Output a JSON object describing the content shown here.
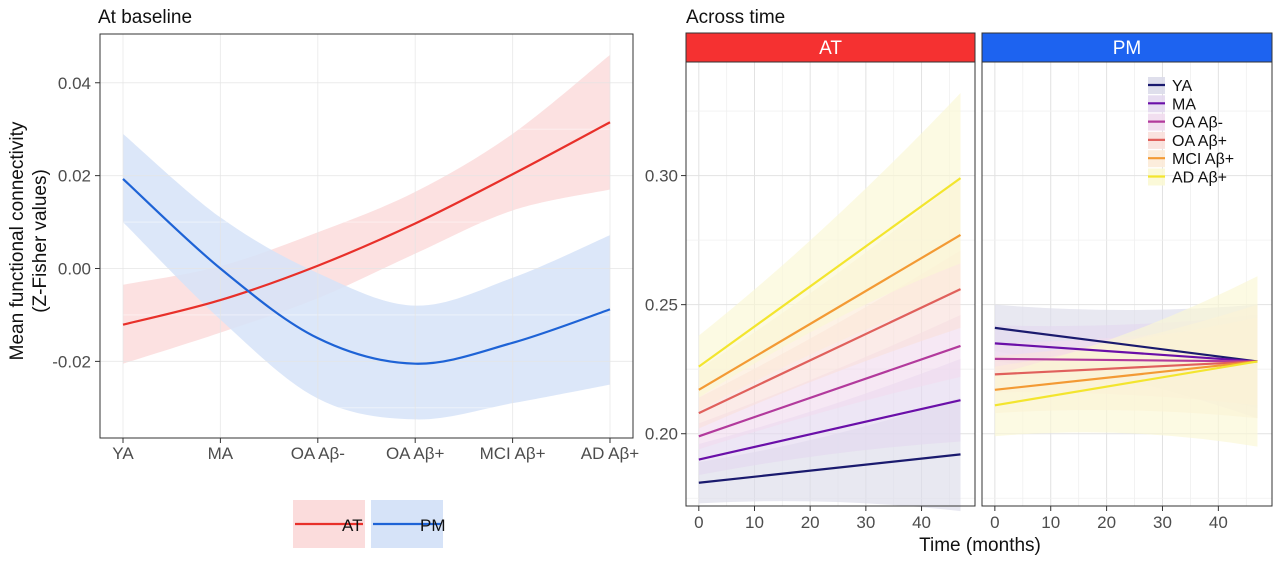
{
  "figure": {
    "left_title": "At baseline",
    "right_title": "Across time"
  },
  "chart_data": [
    {
      "type": "line",
      "title": "At baseline",
      "xlabel": "",
      "ylabel": "Mean functional connectivity",
      "ylabel2": "(Z-Fisher values)",
      "categories": [
        "YA",
        "MA",
        "OA Aβ-",
        "OA Aβ+",
        "MCI Aβ+",
        "AD Aβ+"
      ],
      "yticks": [
        "0.04",
        "0.02",
        "0.00",
        "-0.02"
      ],
      "ytick_values": [
        0.04,
        0.02,
        0.0,
        -0.02
      ],
      "ylim": [
        -0.0365,
        0.0505
      ],
      "grid": true,
      "legend_position": "bottom",
      "series": [
        {
          "name": "AT",
          "color": "#e8302a",
          "band": "#fbdcdc",
          "values": [
            -0.0121,
            -0.0068,
            0.0006,
            0.0097,
            0.0203,
            0.0315
          ],
          "lower": [
            -0.0205,
            -0.0138,
            -0.0064,
            0.0032,
            0.0125,
            0.017
          ],
          "upper": [
            -0.0035,
            0.0005,
            0.0078,
            0.0165,
            0.029,
            0.046
          ]
        },
        {
          "name": "PM",
          "color": "#1e63d6",
          "band": "#d6e3f8",
          "values": [
            0.0193,
            0.0,
            -0.015,
            -0.0205,
            -0.016,
            -0.0088
          ],
          "lower": [
            0.01,
            -0.011,
            -0.028,
            -0.0325,
            -0.029,
            -0.025
          ],
          "upper": [
            0.029,
            0.011,
            -0.001,
            -0.008,
            -0.002,
            0.0072
          ]
        }
      ]
    },
    {
      "type": "line",
      "title": "Across time",
      "xlabel": "Time (months)",
      "ylabel": "",
      "xticks": [
        "0",
        "10",
        "20",
        "30",
        "40"
      ],
      "xtick_values": [
        0,
        10,
        20,
        30,
        40
      ],
      "xlim": [
        -2.3,
        49.6
      ],
      "yticks": [
        "0.30",
        "0.25",
        "0.20"
      ],
      "ytick_values": [
        0.3,
        0.25,
        0.2
      ],
      "ylim": [
        0.172,
        0.344
      ],
      "grid": true,
      "legend_position": "top-right",
      "legend": [
        "YA",
        "MA",
        "OA Aβ-",
        "OA Aβ+",
        "MCI Aβ+",
        "AD Aβ+"
      ],
      "panels": [
        {
          "name": "AT",
          "strip_color": "#f53131",
          "series": [
            {
              "name": "YA",
              "color": "#1a1a6e",
              "band": "#dcdcea",
              "x": [
                0,
                47
              ],
              "values": [
                0.181,
                0.192
              ],
              "band_halfwidth": [
                0.008,
                0.022
              ]
            },
            {
              "name": "MA",
              "color": "#6a0fa8",
              "band": "#e4d9f0",
              "x": [
                0,
                47
              ],
              "values": [
                0.19,
                0.213
              ],
              "band_halfwidth": [
                0.006,
                0.016
              ]
            },
            {
              "name": "OA Aβ-",
              "color": "#b23a9c",
              "band": "#f1dcee",
              "x": [
                0,
                47
              ],
              "values": [
                0.199,
                0.234
              ],
              "band_halfwidth": [
                0.005,
                0.012
              ]
            },
            {
              "name": "OA Aβ+",
              "color": "#e0605c",
              "band": "#f9e0dc",
              "x": [
                0,
                47
              ],
              "values": [
                0.208,
                0.256
              ],
              "band_halfwidth": [
                0.006,
                0.015
              ]
            },
            {
              "name": "MCI Aβ+",
              "color": "#f39a34",
              "band": "#fcebd8",
              "x": [
                0,
                47
              ],
              "values": [
                0.217,
                0.277
              ],
              "band_halfwidth": [
                0.008,
                0.022
              ]
            },
            {
              "name": "AD Aβ+",
              "color": "#f3e52e",
              "band": "#fbf8d4",
              "x": [
                0,
                47
              ],
              "values": [
                0.226,
                0.299
              ],
              "band_halfwidth": [
                0.012,
                0.033
              ]
            }
          ]
        },
        {
          "name": "PM",
          "strip_color": "#1d63f0",
          "series": [
            {
              "name": "YA",
              "color": "#1a1a6e",
              "band": "#dcdcea",
              "x": [
                0,
                47
              ],
              "values": [
                0.241,
                0.228
              ],
              "band_halfwidth": [
                0.009,
                0.022
              ]
            },
            {
              "name": "MA",
              "color": "#6a0fa8",
              "band": "#e4d9f0",
              "x": [
                0,
                47
              ],
              "values": [
                0.235,
                0.228
              ],
              "band_halfwidth": [
                0.007,
                0.018
              ]
            },
            {
              "name": "OA Aβ-",
              "color": "#b23a9c",
              "band": "#f1dcee",
              "x": [
                0,
                47
              ],
              "values": [
                0.229,
                0.228
              ],
              "band_halfwidth": [
                0.006,
                0.015
              ]
            },
            {
              "name": "OA Aβ+",
              "color": "#e0605c",
              "band": "#f9e0dc",
              "x": [
                0,
                47
              ],
              "values": [
                0.223,
                0.228
              ],
              "band_halfwidth": [
                0.007,
                0.017
              ]
            },
            {
              "name": "MCI Aβ+",
              "color": "#f39a34",
              "band": "#fcebd8",
              "x": [
                0,
                47
              ],
              "values": [
                0.217,
                0.228
              ],
              "band_halfwidth": [
                0.009,
                0.022
              ]
            },
            {
              "name": "AD Aβ+",
              "color": "#f3e52e",
              "band": "#fbf8d4",
              "x": [
                0,
                47
              ],
              "values": [
                0.211,
                0.228
              ],
              "band_halfwidth": [
                0.012,
                0.033
              ]
            }
          ]
        }
      ]
    }
  ]
}
